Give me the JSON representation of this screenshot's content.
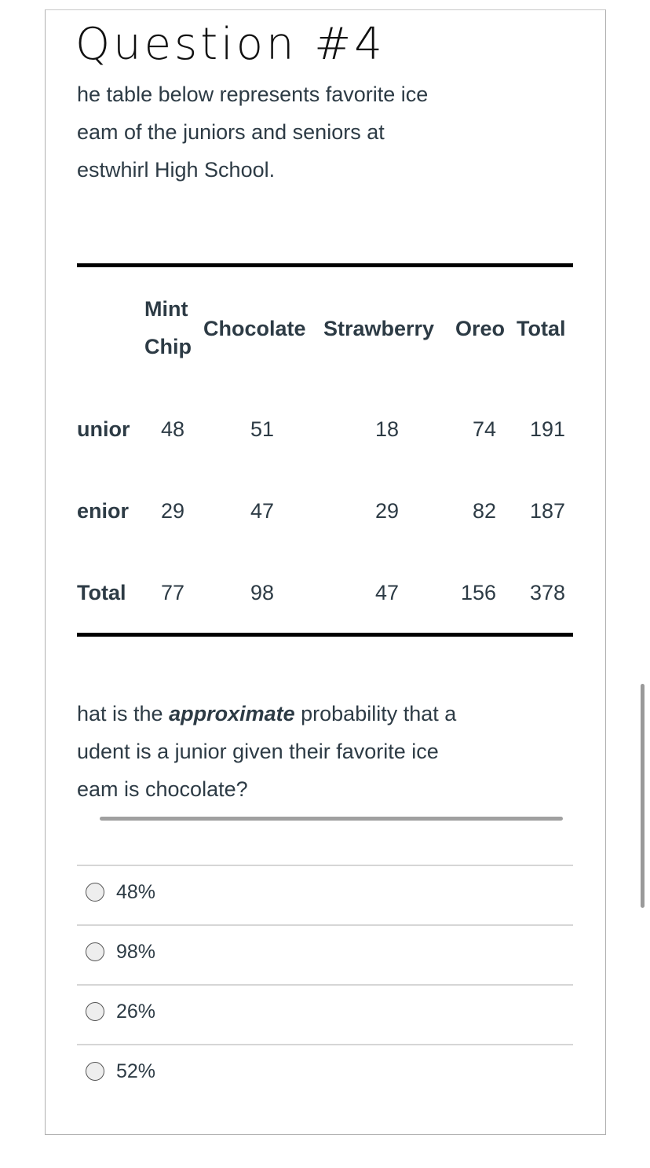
{
  "header": {
    "title": "Question #4"
  },
  "intro": [
    "he table below represents favorite ice",
    "eam of the juniors and seniors at",
    "estwhirl High School."
  ],
  "table": {
    "columns": [
      [
        "Mint",
        "Chip"
      ],
      "Chocolate",
      "Strawberry",
      "Oreo",
      "Total"
    ],
    "rows": [
      {
        "label": "unior",
        "values": [
          48,
          51,
          18,
          74,
          191
        ]
      },
      {
        "label": "enior",
        "values": [
          29,
          47,
          29,
          82,
          187
        ]
      },
      {
        "label": "Total",
        "values": [
          77,
          98,
          47,
          156,
          378
        ]
      }
    ]
  },
  "question": {
    "lines": [
      [
        "hat is the ",
        "approximate",
        " probability that a"
      ],
      "udent is a junior given their favorite ice",
      "eam is chocolate?"
    ]
  },
  "options": [
    "48%",
    "98%",
    "26%",
    "52%"
  ]
}
